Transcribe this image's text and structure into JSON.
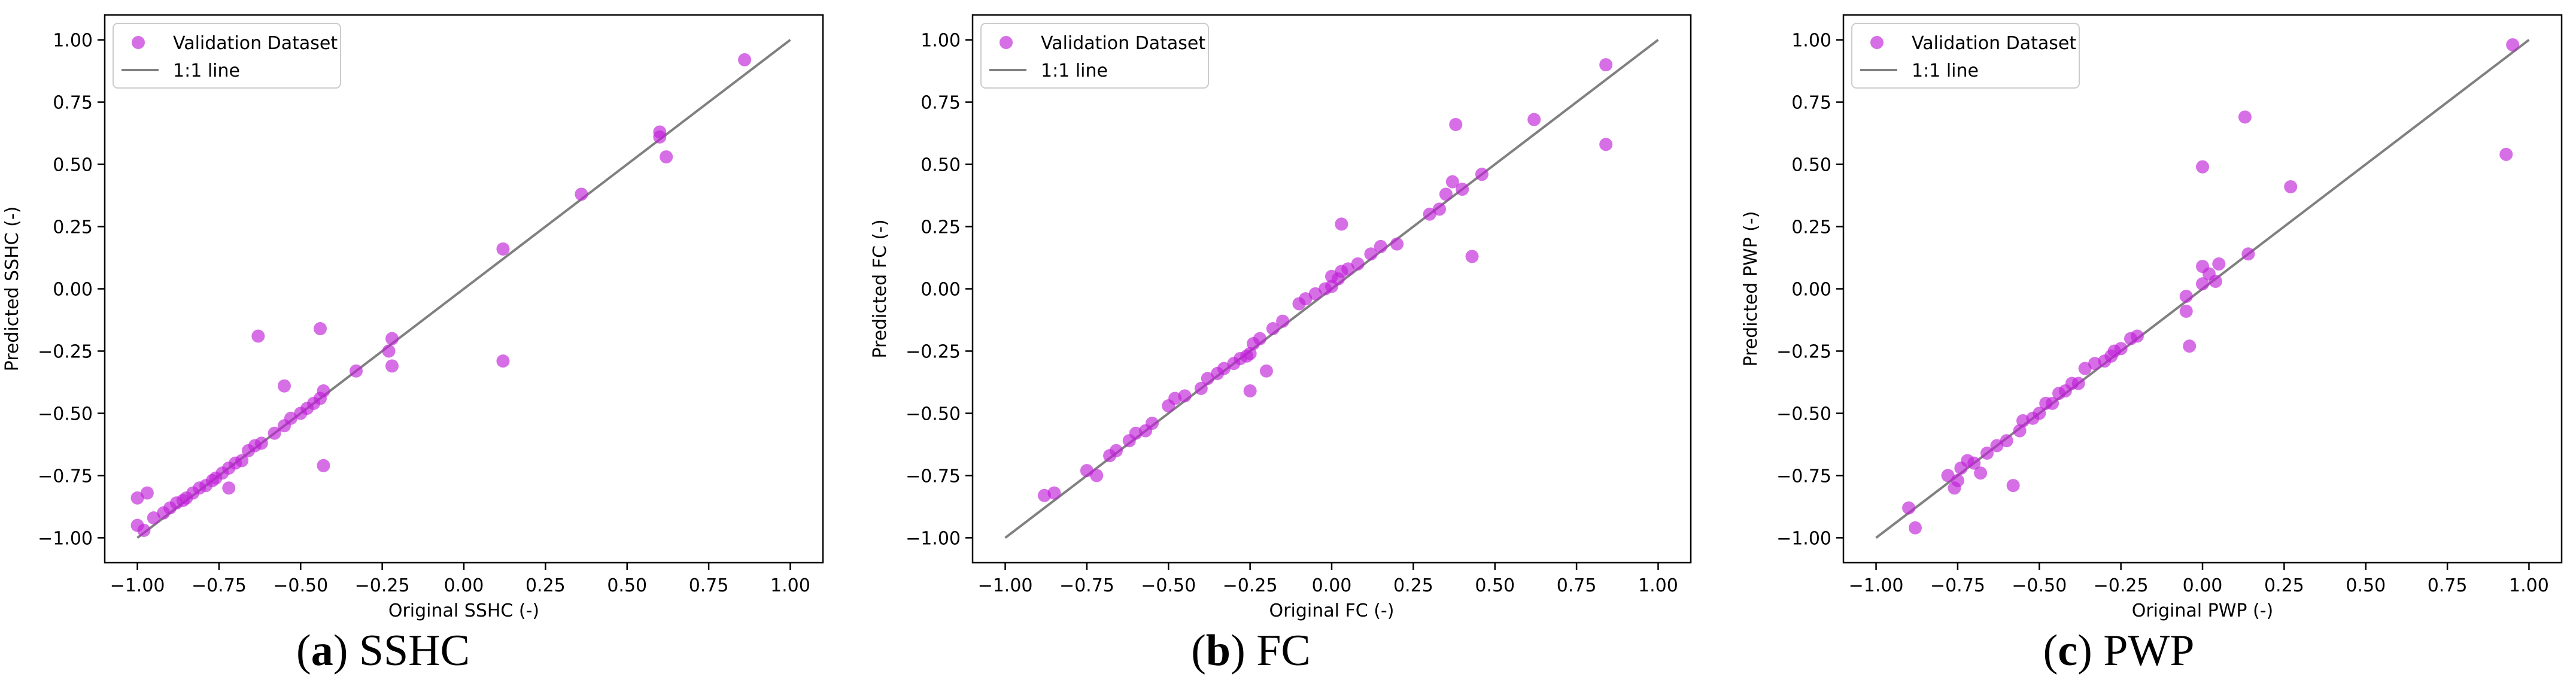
{
  "chart_data": [
    {
      "type": "scatter",
      "panel_label": "a",
      "caption": "SSHC",
      "xlabel": "Original SSHC (-)",
      "ylabel": "Predicted SSHC (-)",
      "xlim": [
        -1.1,
        1.1
      ],
      "ylim": [
        -1.1,
        1.1
      ],
      "xticks": [
        -1.0,
        -0.75,
        -0.5,
        -0.25,
        0.0,
        0.25,
        0.5,
        0.75,
        1.0
      ],
      "yticks": [
        -1.0,
        -0.75,
        -0.5,
        -0.25,
        0.0,
        0.25,
        0.5,
        0.75,
        1.0
      ],
      "xtick_labels": [
        "−1.00",
        "−0.75",
        "−0.50",
        "−0.25",
        "0.00",
        "0.25",
        "0.50",
        "0.75",
        "1.00"
      ],
      "ytick_labels": [
        "−1.00",
        "−0.75",
        "−0.50",
        "−0.25",
        "0.00",
        "0.25",
        "0.50",
        "0.75",
        "1.00"
      ],
      "legend": [
        "Validation Dataset",
        "1:1 line"
      ],
      "legend_loc": "upper-left",
      "series": [
        {
          "name": "Validation Dataset",
          "color": "#c020d8",
          "points": [
            [
              -1.0,
              -0.84
            ],
            [
              -0.97,
              -0.82
            ],
            [
              -1.0,
              -0.95
            ],
            [
              -0.98,
              -0.97
            ],
            [
              -0.95,
              -0.92
            ],
            [
              -0.92,
              -0.9
            ],
            [
              -0.9,
              -0.88
            ],
            [
              -0.88,
              -0.86
            ],
            [
              -0.86,
              -0.85
            ],
            [
              -0.85,
              -0.84
            ],
            [
              -0.83,
              -0.82
            ],
            [
              -0.81,
              -0.8
            ],
            [
              -0.79,
              -0.79
            ],
            [
              -0.77,
              -0.77
            ],
            [
              -0.76,
              -0.76
            ],
            [
              -0.74,
              -0.74
            ],
            [
              -0.72,
              -0.72
            ],
            [
              -0.7,
              -0.7
            ],
            [
              -0.72,
              -0.8
            ],
            [
              -0.68,
              -0.69
            ],
            [
              -0.66,
              -0.65
            ],
            [
              -0.64,
              -0.63
            ],
            [
              -0.62,
              -0.62
            ],
            [
              -0.58,
              -0.58
            ],
            [
              -0.55,
              -0.55
            ],
            [
              -0.53,
              -0.52
            ],
            [
              -0.5,
              -0.5
            ],
            [
              -0.48,
              -0.48
            ],
            [
              -0.46,
              -0.46
            ],
            [
              -0.44,
              -0.44
            ],
            [
              -0.43,
              -0.41
            ],
            [
              -0.55,
              -0.39
            ],
            [
              -0.63,
              -0.19
            ],
            [
              -0.44,
              -0.16
            ],
            [
              -0.43,
              -0.71
            ],
            [
              -0.33,
              -0.33
            ],
            [
              -0.23,
              -0.25
            ],
            [
              -0.22,
              -0.2
            ],
            [
              -0.22,
              -0.31
            ],
            [
              0.12,
              0.16
            ],
            [
              0.12,
              -0.29
            ],
            [
              0.36,
              0.38
            ],
            [
              0.6,
              0.61
            ],
            [
              0.6,
              0.63
            ],
            [
              0.62,
              0.53
            ],
            [
              0.86,
              0.92
            ]
          ]
        }
      ]
    },
    {
      "type": "scatter",
      "panel_label": "b",
      "caption": "FC",
      "xlabel": "Original FC (-)",
      "ylabel": "Predicted FC (-)",
      "xlim": [
        -1.1,
        1.1
      ],
      "ylim": [
        -1.1,
        1.1
      ],
      "xticks": [
        -1.0,
        -0.75,
        -0.5,
        -0.25,
        0.0,
        0.25,
        0.5,
        0.75,
        1.0
      ],
      "yticks": [
        -1.0,
        -0.75,
        -0.5,
        -0.25,
        0.0,
        0.25,
        0.5,
        0.75,
        1.0
      ],
      "xtick_labels": [
        "−1.00",
        "−0.75",
        "−0.50",
        "−0.25",
        "0.00",
        "0.25",
        "0.50",
        "0.75",
        "1.00"
      ],
      "ytick_labels": [
        "−1.00",
        "−0.75",
        "−0.50",
        "−0.25",
        "0.00",
        "0.25",
        "0.50",
        "0.75",
        "1.00"
      ],
      "legend": [
        "Validation Dataset",
        "1:1 line"
      ],
      "legend_loc": "upper-left",
      "series": [
        {
          "name": "Validation Dataset",
          "color": "#c020d8",
          "points": [
            [
              -0.88,
              -0.83
            ],
            [
              -0.85,
              -0.82
            ],
            [
              -0.75,
              -0.73
            ],
            [
              -0.72,
              -0.75
            ],
            [
              -0.68,
              -0.67
            ],
            [
              -0.66,
              -0.65
            ],
            [
              -0.62,
              -0.61
            ],
            [
              -0.6,
              -0.58
            ],
            [
              -0.57,
              -0.57
            ],
            [
              -0.55,
              -0.54
            ],
            [
              -0.5,
              -0.47
            ],
            [
              -0.48,
              -0.44
            ],
            [
              -0.45,
              -0.43
            ],
            [
              -0.4,
              -0.4
            ],
            [
              -0.38,
              -0.36
            ],
            [
              -0.35,
              -0.34
            ],
            [
              -0.33,
              -0.32
            ],
            [
              -0.3,
              -0.3
            ],
            [
              -0.28,
              -0.28
            ],
            [
              -0.26,
              -0.27
            ],
            [
              -0.25,
              -0.26
            ],
            [
              -0.24,
              -0.22
            ],
            [
              -0.22,
              -0.2
            ],
            [
              -0.18,
              -0.16
            ],
            [
              -0.15,
              -0.13
            ],
            [
              -0.25,
              -0.41
            ],
            [
              -0.2,
              -0.33
            ],
            [
              -0.1,
              -0.06
            ],
            [
              -0.08,
              -0.04
            ],
            [
              -0.05,
              -0.02
            ],
            [
              -0.02,
              0.0
            ],
            [
              0.0,
              0.01
            ],
            [
              0.0,
              0.05
            ],
            [
              0.02,
              0.04
            ],
            [
              0.03,
              0.07
            ],
            [
              0.05,
              0.08
            ],
            [
              0.08,
              0.1
            ],
            [
              0.12,
              0.14
            ],
            [
              0.15,
              0.17
            ],
            [
              0.2,
              0.18
            ],
            [
              0.03,
              0.26
            ],
            [
              0.3,
              0.3
            ],
            [
              0.33,
              0.32
            ],
            [
              0.35,
              0.38
            ],
            [
              0.37,
              0.43
            ],
            [
              0.4,
              0.4
            ],
            [
              0.43,
              0.13
            ],
            [
              0.46,
              0.46
            ],
            [
              0.38,
              0.66
            ],
            [
              0.62,
              0.68
            ],
            [
              0.84,
              0.58
            ],
            [
              0.84,
              0.9
            ]
          ]
        }
      ]
    },
    {
      "type": "scatter",
      "panel_label": "c",
      "caption": "PWP",
      "xlabel": "Original PWP (-)",
      "ylabel": "Predicted PWP (-)",
      "xlim": [
        -1.1,
        1.1
      ],
      "ylim": [
        -1.1,
        1.1
      ],
      "xticks": [
        -1.0,
        -0.75,
        -0.5,
        -0.25,
        0.0,
        0.25,
        0.5,
        0.75,
        1.0
      ],
      "yticks": [
        -1.0,
        -0.75,
        -0.5,
        -0.25,
        0.0,
        0.25,
        0.5,
        0.75,
        1.0
      ],
      "xtick_labels": [
        "−1.00",
        "−0.75",
        "−0.50",
        "−0.25",
        "0.00",
        "0.25",
        "0.50",
        "0.75",
        "1.00"
      ],
      "ytick_labels": [
        "−1.00",
        "−0.75",
        "−0.50",
        "−0.25",
        "0.00",
        "0.25",
        "0.50",
        "0.75",
        "1.00"
      ],
      "legend": [
        "Validation Dataset",
        "1:1 line"
      ],
      "legend_loc": "upper-left",
      "series": [
        {
          "name": "Validation Dataset",
          "color": "#c020d8",
          "points": [
            [
              -0.9,
              -0.88
            ],
            [
              -0.88,
              -0.96
            ],
            [
              -0.78,
              -0.75
            ],
            [
              -0.76,
              -0.8
            ],
            [
              -0.75,
              -0.77
            ],
            [
              -0.74,
              -0.72
            ],
            [
              -0.72,
              -0.69
            ],
            [
              -0.7,
              -0.7
            ],
            [
              -0.68,
              -0.74
            ],
            [
              -0.66,
              -0.66
            ],
            [
              -0.63,
              -0.63
            ],
            [
              -0.6,
              -0.61
            ],
            [
              -0.58,
              -0.79
            ],
            [
              -0.56,
              -0.57
            ],
            [
              -0.55,
              -0.53
            ],
            [
              -0.52,
              -0.52
            ],
            [
              -0.5,
              -0.5
            ],
            [
              -0.48,
              -0.46
            ],
            [
              -0.46,
              -0.46
            ],
            [
              -0.44,
              -0.42
            ],
            [
              -0.42,
              -0.41
            ],
            [
              -0.4,
              -0.38
            ],
            [
              -0.38,
              -0.38
            ],
            [
              -0.36,
              -0.32
            ],
            [
              -0.33,
              -0.3
            ],
            [
              -0.3,
              -0.29
            ],
            [
              -0.28,
              -0.27
            ],
            [
              -0.27,
              -0.25
            ],
            [
              -0.25,
              -0.24
            ],
            [
              -0.22,
              -0.2
            ],
            [
              -0.2,
              -0.19
            ],
            [
              -0.05,
              -0.09
            ],
            [
              -0.05,
              -0.03
            ],
            [
              -0.04,
              -0.23
            ],
            [
              0.0,
              0.02
            ],
            [
              0.0,
              0.09
            ],
            [
              0.02,
              0.06
            ],
            [
              0.04,
              0.03
            ],
            [
              0.05,
              0.1
            ],
            [
              0.14,
              0.14
            ],
            [
              0.0,
              0.49
            ],
            [
              0.13,
              0.69
            ],
            [
              0.27,
              0.41
            ],
            [
              0.93,
              0.54
            ],
            [
              0.95,
              0.98
            ]
          ]
        }
      ]
    }
  ]
}
